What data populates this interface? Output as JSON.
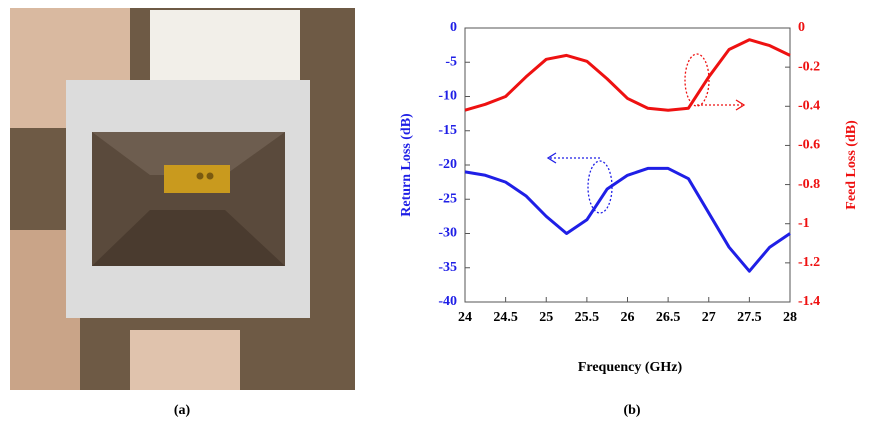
{
  "chart_data": {
    "type": "line",
    "x_label": "Frequency (GHz)",
    "y_label": "Return Loss (dB)",
    "y2_label": "Feed Loss (dB)",
    "x": [
      24,
      24.25,
      24.5,
      24.75,
      25,
      25.25,
      25.5,
      25.75,
      26,
      26.25,
      26.5,
      26.75,
      27,
      27.25,
      27.5,
      27.75,
      28
    ],
    "series": [
      {
        "color": "#1f1fe6",
        "axis": "y",
        "values": [
          -21,
          -21.5,
          -22.5,
          -24.5,
          -27.5,
          -30,
          -28,
          -23.5,
          -21.5,
          -20.5,
          -20.5,
          -22,
          -27,
          -32,
          -35.5,
          -32,
          -30
        ]
      },
      {
        "color": "#ee1111",
        "axis": "y2",
        "values": [
          -0.42,
          -0.39,
          -0.35,
          -0.25,
          -0.16,
          -0.14,
          -0.17,
          -0.26,
          -0.36,
          -0.41,
          -0.42,
          -0.41,
          -0.25,
          -0.11,
          -0.06,
          -0.09,
          -0.14
        ]
      }
    ],
    "xlim": [
      24,
      28
    ],
    "xticks": [
      24,
      24.5,
      25,
      25.5,
      26,
      26.5,
      27,
      27.5,
      28
    ],
    "ylim": [
      -40,
      0
    ],
    "yticks": [
      0,
      -5,
      -10,
      -15,
      -20,
      -25,
      -30,
      -35,
      -40
    ],
    "y2lim": [
      -1.4,
      0
    ],
    "y2ticks": [
      0,
      -0.2,
      -0.4,
      -0.6,
      -0.8,
      -1,
      -1.2,
      -1.4
    ]
  },
  "panel_labels": [
    "(a)",
    "(b)"
  ]
}
